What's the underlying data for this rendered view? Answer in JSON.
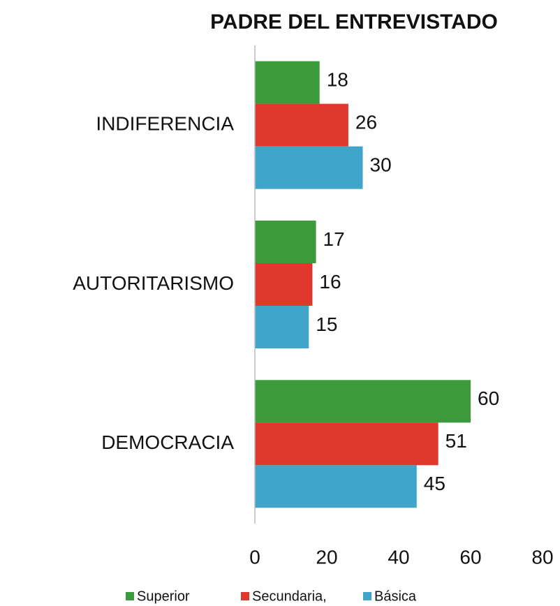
{
  "chart_data": {
    "type": "hbar",
    "title": "PADRE DEL ENTREVISTADO",
    "categories": [
      "INDIFERENCIA",
      "AUTORITARISMO",
      "DEMOCRACIA"
    ],
    "series": [
      {
        "name": "Superior",
        "color": "#3b9a3b",
        "values": [
          18,
          17,
          60
        ]
      },
      {
        "name": "Secundaria,",
        "color": "#e0382f",
        "values": [
          26,
          16,
          51
        ]
      },
      {
        "name": "Básica",
        "color": "#3fa6c9",
        "values": [
          30,
          15,
          45
        ]
      }
    ],
    "xlim": [
      0,
      80
    ],
    "xticks": [
      0,
      20,
      40,
      60,
      80
    ],
    "grid": false,
    "legend": "bottom"
  }
}
